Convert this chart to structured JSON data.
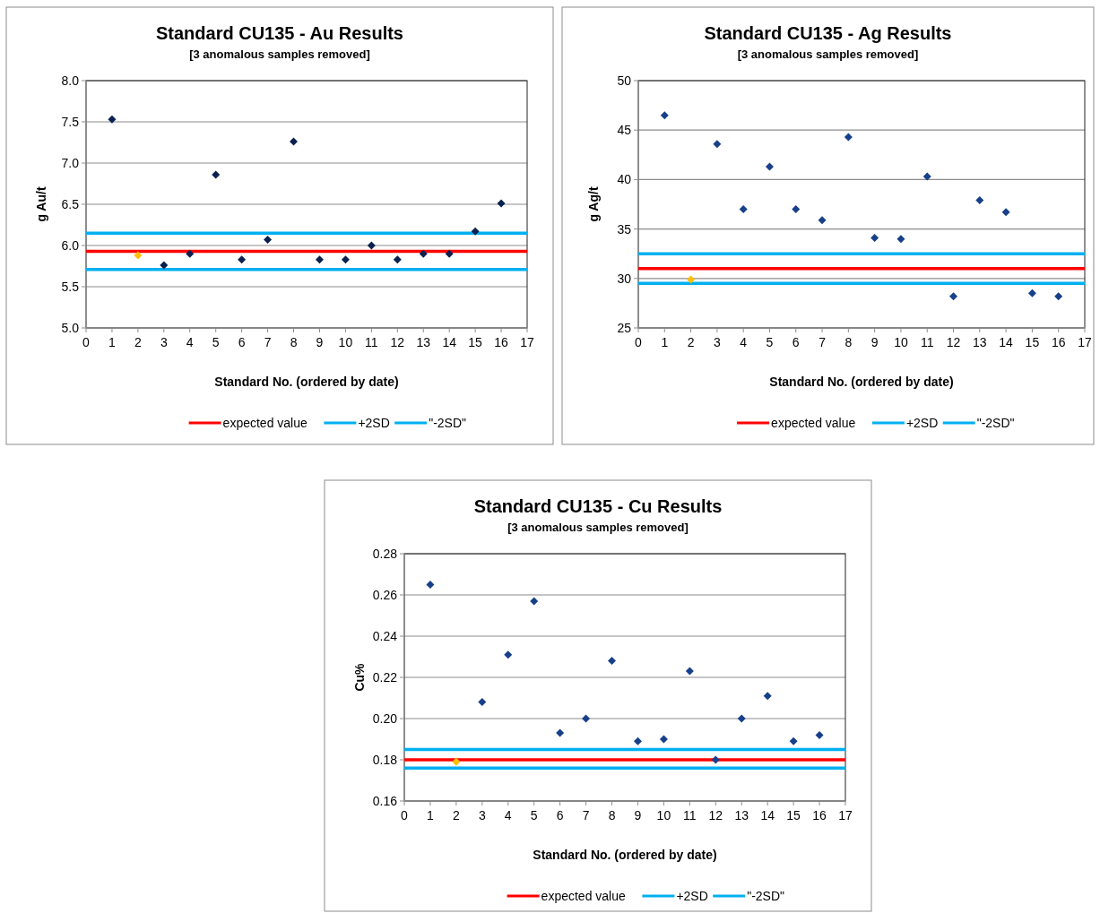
{
  "chart_data": [
    {
      "type": "scatter",
      "title": "Standard CU135 - Au Results",
      "subtitle": "[3 anomalous samples removed]",
      "xlabel": "Standard No. (ordered by date)",
      "ylabel": "g Au/t",
      "xlim": [
        0,
        17
      ],
      "xticks": [
        0,
        1,
        2,
        3,
        4,
        5,
        6,
        7,
        8,
        9,
        10,
        11,
        12,
        13,
        14,
        15,
        16,
        17
      ],
      "ylim": [
        5.0,
        8.0
      ],
      "yticks": [
        {
          "value": 5,
          "label": "5.0"
        },
        {
          "value": 5.5,
          "label": "5.5"
        },
        {
          "value": 6,
          "label": "6.0"
        },
        {
          "value": 6.5,
          "label": "6.5"
        },
        {
          "value": 7,
          "label": "7.0"
        },
        {
          "value": 7.5,
          "label": "7.5"
        },
        {
          "value": 8,
          "label": "8.0"
        }
      ],
      "grid": "y",
      "marker": "diamond",
      "legend": "bottom",
      "series": [
        {
          "color": "#0a2050",
          "x": [
            1,
            3,
            4,
            5,
            6,
            7,
            8,
            9,
            10,
            11,
            12,
            13,
            14,
            15,
            16
          ],
          "values": [
            7.53,
            5.76,
            5.9,
            6.86,
            5.83,
            6.07,
            7.26,
            5.83,
            5.83,
            6.0,
            5.83,
            5.9,
            5.9,
            6.17,
            6.51
          ]
        },
        {
          "color": "#ffc000",
          "x": [
            2
          ],
          "values": [
            5.88
          ]
        }
      ],
      "ref_lines": [
        {
          "axis": "y",
          "value": 5.93,
          "label": "expected value",
          "color": "#ff0000"
        },
        {
          "axis": "y",
          "value": 6.15,
          "label": "+2SD",
          "color": "#00b0f0"
        },
        {
          "axis": "y",
          "value": 5.71,
          "label": "\"-2SD\"",
          "color": "#00b0f0"
        }
      ]
    },
    {
      "type": "scatter",
      "title": "Standard CU135 - Ag Results",
      "subtitle": "[3 anomalous samples removed]",
      "xlabel": "Standard No. (ordered by date)",
      "ylabel": "g Ag/t",
      "xlim": [
        0,
        17
      ],
      "xticks": [
        0,
        1,
        2,
        3,
        4,
        5,
        6,
        7,
        8,
        9,
        10,
        11,
        12,
        13,
        14,
        15,
        16,
        17
      ],
      "ylim": [
        25,
        50
      ],
      "yticks": [
        25,
        30,
        35,
        40,
        45,
        50
      ],
      "grid": "y",
      "marker": "diamond",
      "legend": "bottom",
      "series": [
        {
          "color": "#17408a",
          "x": [
            1,
            3,
            4,
            5,
            6,
            7,
            8,
            9,
            10,
            11,
            12,
            13,
            14,
            15,
            16
          ],
          "values": [
            46.5,
            43.6,
            37.0,
            41.3,
            37.0,
            35.9,
            44.3,
            34.1,
            34.0,
            40.3,
            28.2,
            37.9,
            36.7,
            28.5,
            28.2
          ]
        },
        {
          "color": "#ffc000",
          "x": [
            2
          ],
          "values": [
            29.9
          ]
        }
      ],
      "ref_lines": [
        {
          "axis": "y",
          "value": 31.0,
          "label": "expected value",
          "color": "#ff0000"
        },
        {
          "axis": "y",
          "value": 32.5,
          "label": "+2SD",
          "color": "#00b0f0"
        },
        {
          "axis": "y",
          "value": 29.5,
          "label": "\"-2SD\"",
          "color": "#00b0f0"
        }
      ]
    },
    {
      "type": "scatter",
      "title": "Standard CU135 - Cu Results",
      "subtitle": "[3 anomalous samples removed]",
      "xlabel": "Standard No. (ordered by date)",
      "ylabel": "Cu%",
      "xlim": [
        0,
        17
      ],
      "xticks": [
        0,
        1,
        2,
        3,
        4,
        5,
        6,
        7,
        8,
        9,
        10,
        11,
        12,
        13,
        14,
        15,
        16,
        17
      ],
      "ylim": [
        0.16,
        0.28
      ],
      "yticks": [
        {
          "value": 0.16,
          "label": "0.16"
        },
        {
          "value": 0.18,
          "label": "0.18"
        },
        {
          "value": 0.2,
          "label": "0.20"
        },
        {
          "value": 0.22,
          "label": "0.22"
        },
        {
          "value": 0.24,
          "label": "0.24"
        },
        {
          "value": 0.26,
          "label": "0.26"
        },
        {
          "value": 0.28,
          "label": "0.28"
        }
      ],
      "grid": "y",
      "marker": "diamond",
      "legend": "bottom",
      "series": [
        {
          "color": "#17408a",
          "x": [
            1,
            3,
            4,
            5,
            6,
            7,
            8,
            9,
            10,
            11,
            12,
            13,
            14,
            15,
            16
          ],
          "values": [
            0.265,
            0.208,
            0.231,
            0.257,
            0.193,
            0.2,
            0.228,
            0.189,
            0.19,
            0.223,
            0.18,
            0.2,
            0.211,
            0.189,
            0.192
          ]
        },
        {
          "color": "#ffc000",
          "x": [
            2
          ],
          "values": [
            0.179
          ]
        }
      ],
      "ref_lines": [
        {
          "axis": "y",
          "value": 0.18,
          "label": "expected value",
          "color": "#ff0000"
        },
        {
          "axis": "y",
          "value": 0.185,
          "label": "+2SD",
          "color": "#00b0f0"
        },
        {
          "axis": "y",
          "value": 0.176,
          "label": "\"-2SD\"",
          "color": "#00b0f0"
        }
      ]
    }
  ]
}
